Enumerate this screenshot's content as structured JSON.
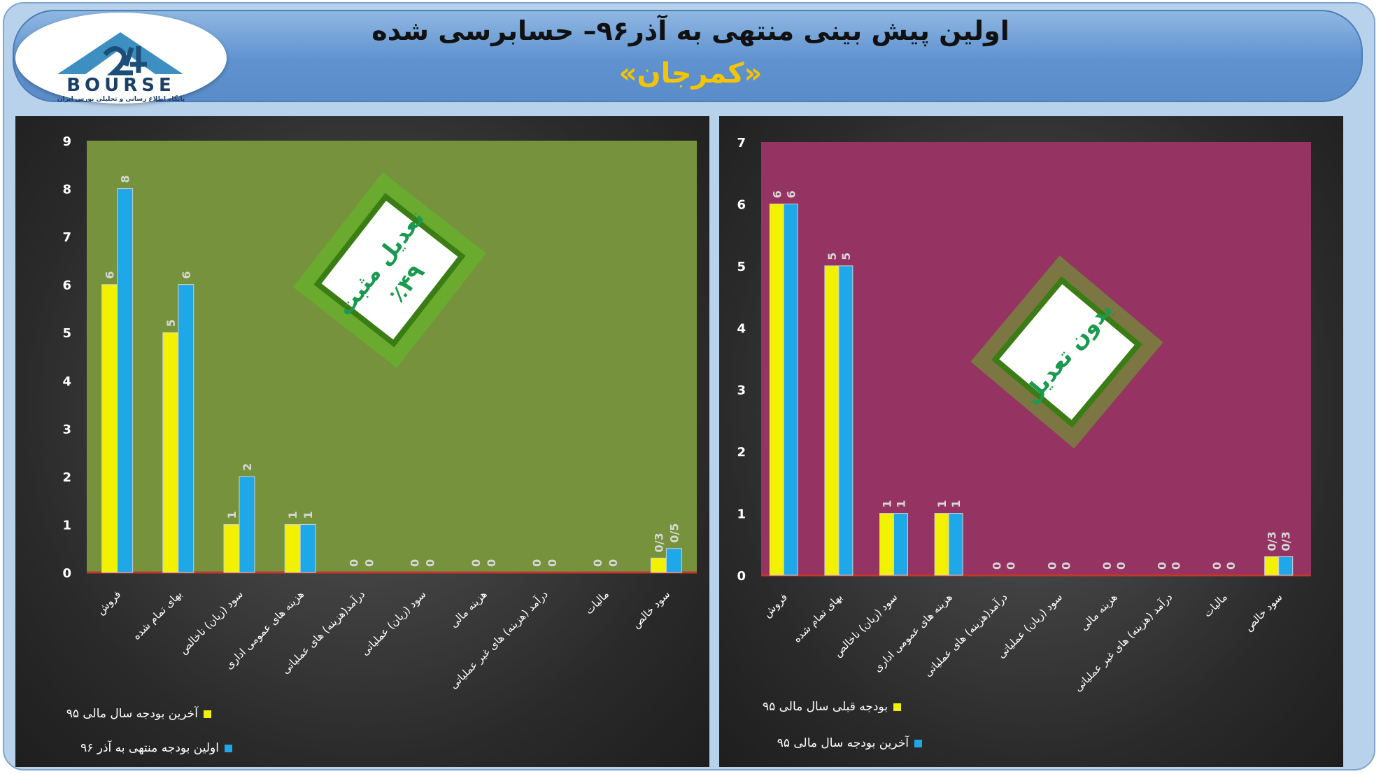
{
  "header": {
    "title": "اولین پیش بینی منتهی به آذر۹۶– حسابرسی شده",
    "subtitle": "«کمرجان»",
    "logo_text": "BOURSE",
    "logo_tagline": "پایگاه اطلاع رسانی و تحلیلی بورس ایران"
  },
  "colors": {
    "yellow": "#f2f200",
    "cyan": "#1fa8e8",
    "plot_left": "#76923c",
    "plot_right": "#953462",
    "stamp_glow": "#5dc81e"
  },
  "categories": [
    "فروش",
    "بهای تمام شده",
    "سود (زیان) ناخالص",
    "هزینه های عمومی اداری",
    "درآمد(هزینه) های عملیاتی",
    "سود (زیان) عملیاتی",
    "هزینه مالی",
    "درآمد (هزینه) های غیر عملیاتی",
    "مالیات",
    "سود خالص"
  ],
  "chart_data": [
    {
      "type": "bar",
      "categories": [
        "فروش",
        "بهای تمام شده",
        "سود (زیان) ناخالص",
        "هزینه های عمومی اداری",
        "درآمد(هزینه) های عملیاتی",
        "سود (زیان) عملیاتی",
        "هزینه مالی",
        "درآمد (هزینه) های غیر عملیاتی",
        "مالیات",
        "سود خالص"
      ],
      "series": [
        {
          "name": "آخرین بودجه سال مالی ۹۵",
          "values": [
            6,
            5,
            1,
            1,
            0,
            0,
            0,
            0,
            0,
            0.3
          ],
          "labels": [
            "6",
            "5",
            "1",
            "1",
            "0",
            "0",
            "0",
            "0",
            "0",
            "0/3"
          ]
        },
        {
          "name": "اولین بودجه منتهی به آذر ۹۶",
          "values": [
            8,
            6,
            2,
            1,
            0,
            0,
            0,
            0,
            0,
            0.5
          ],
          "labels": [
            "8",
            "6",
            "2",
            "1",
            "0",
            "0",
            "0",
            "0",
            "0",
            "0/5"
          ]
        }
      ],
      "ylim": [
        0,
        9
      ],
      "yticks": [
        "0",
        "1",
        "2",
        "3",
        "4",
        "5",
        "6",
        "7",
        "8",
        "9"
      ],
      "stamp": {
        "line1": "تعدیل مثبت",
        "line2": "٪۴۹"
      }
    },
    {
      "type": "bar",
      "categories": [
        "فروش",
        "بهای تمام شده",
        "سود (زیان) ناخالص",
        "هزینه های عمومی اداری",
        "درآمد(هزینه) های عملیاتی",
        "سود (زیان) عملیاتی",
        "هزینه مالی",
        "درآمد (هزینه) های غیر عملیاتی",
        "مالیات",
        "سود خالص"
      ],
      "series": [
        {
          "name": "بودجه قبلی سال مالی ۹۵",
          "values": [
            6,
            5,
            1,
            1,
            0,
            0,
            0,
            0,
            0,
            0.3
          ],
          "labels": [
            "6",
            "5",
            "1",
            "1",
            "0",
            "0",
            "0",
            "0",
            "0",
            "0/3"
          ]
        },
        {
          "name": "آخرین بودجه سال مالی ۹۵",
          "values": [
            6,
            5,
            1,
            1,
            0,
            0,
            0,
            0,
            0,
            0.3
          ],
          "labels": [
            "6",
            "5",
            "1",
            "1",
            "0",
            "0",
            "0",
            "0",
            "0",
            "0/3"
          ]
        }
      ],
      "ylim": [
        0,
        7
      ],
      "yticks": [
        "0",
        "1",
        "2",
        "3",
        "4",
        "5",
        "6",
        "7"
      ],
      "stamp": {
        "line1": "بدون تعدیل",
        "line2": ""
      }
    }
  ]
}
